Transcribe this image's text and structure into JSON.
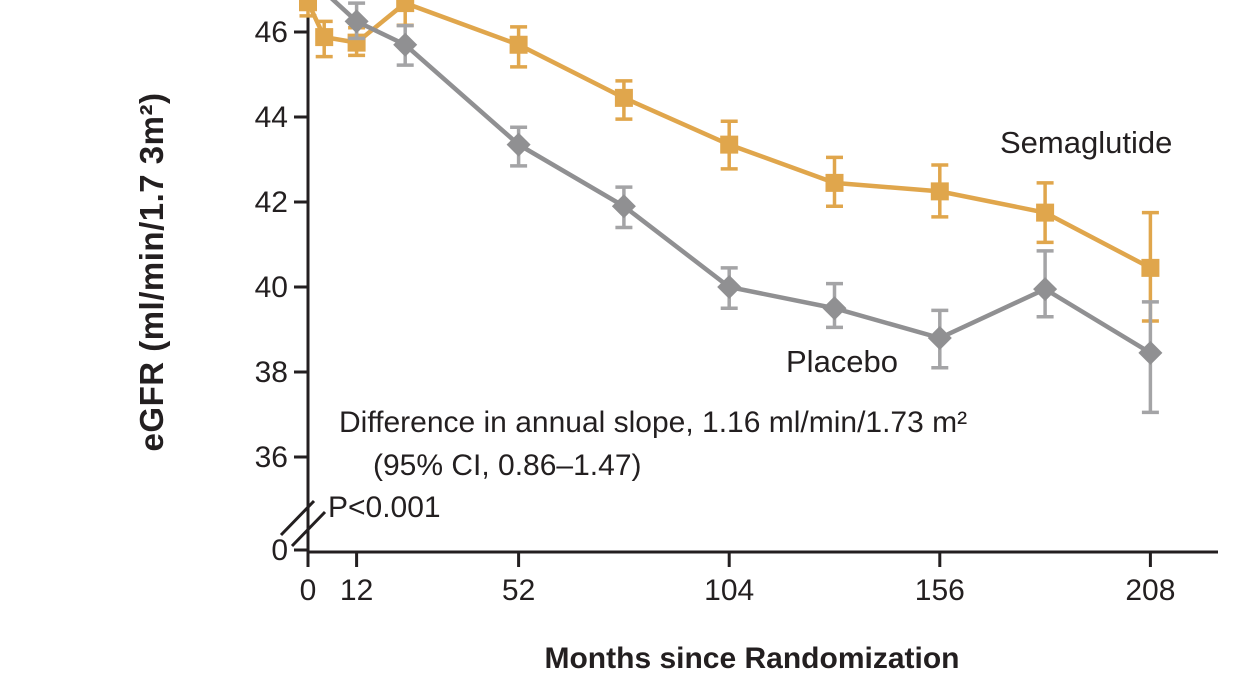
{
  "chart_data": {
    "type": "line",
    "title": "",
    "xlabel": "Months since Randomization",
    "ylabel": "eGFR (ml/min/1.7 3m²)",
    "x_ticks": [
      0,
      12,
      52,
      104,
      156,
      208
    ],
    "y_ticks": [
      0,
      36,
      38,
      40,
      42,
      44,
      46
    ],
    "y_axis_break_between": [
      0,
      36
    ],
    "ylim_shown": [
      36,
      46.75
    ],
    "xlim": [
      0,
      224
    ],
    "grid": false,
    "legend_position": "inline-labels",
    "colors": {
      "semaglutide": "#e0a64c",
      "semaglutide_whisker": "#e0a64c",
      "placebo": "#909092",
      "placebo_whisker": "#a4a4a6",
      "axis_text": "#231f20"
    },
    "annotation_lines": [
      "Difference in annual slope, 1.16 ml/min/1.73 m²",
      "(95% CI, 0.86–1.47)",
      "P<0.001"
    ],
    "series": [
      {
        "name": "Semaglutide",
        "marker": "square",
        "color_key": "semaglutide",
        "points": [
          {
            "x": 0,
            "y": 46.7,
            "lo": 46.38,
            "hi": 47.2
          },
          {
            "x": 4,
            "y": 45.88,
            "lo": 45.42,
            "hi": 46.25
          },
          {
            "x": 12,
            "y": 45.75,
            "lo": 45.45,
            "hi": 46.1
          },
          {
            "x": 24,
            "y": 46.68,
            "lo": 46.16,
            "hi": 47.2
          },
          {
            "x": 52,
            "y": 45.7,
            "lo": 45.18,
            "hi": 46.12
          },
          {
            "x": 78,
            "y": 44.45,
            "lo": 43.95,
            "hi": 44.85
          },
          {
            "x": 104,
            "y": 43.35,
            "lo": 42.78,
            "hi": 43.9
          },
          {
            "x": 130,
            "y": 42.45,
            "lo": 41.9,
            "hi": 43.05
          },
          {
            "x": 156,
            "y": 42.25,
            "lo": 41.65,
            "hi": 42.87
          },
          {
            "x": 182,
            "y": 41.75,
            "lo": 41.05,
            "hi": 42.45
          },
          {
            "x": 208,
            "y": 40.45,
            "lo": 39.2,
            "hi": 41.75
          }
        ]
      },
      {
        "name": "Placebo",
        "marker": "diamond",
        "color_key": "placebo",
        "points": [
          {
            "x": 0,
            "y": 47.3,
            "lo": null,
            "hi": null
          },
          {
            "x": 12,
            "y": 46.25,
            "lo": 45.85,
            "hi": 46.68
          },
          {
            "x": 24,
            "y": 45.7,
            "lo": 45.22,
            "hi": 46.15
          },
          {
            "x": 52,
            "y": 43.35,
            "lo": 42.85,
            "hi": 43.76
          },
          {
            "x": 78,
            "y": 41.9,
            "lo": 41.4,
            "hi": 42.35
          },
          {
            "x": 104,
            "y": 40.0,
            "lo": 39.5,
            "hi": 40.45
          },
          {
            "x": 130,
            "y": 39.5,
            "lo": 39.05,
            "hi": 40.08
          },
          {
            "x": 156,
            "y": 38.8,
            "lo": 38.1,
            "hi": 39.45
          },
          {
            "x": 182,
            "y": 39.95,
            "lo": 39.3,
            "hi": 40.85
          },
          {
            "x": 208,
            "y": 38.45,
            "lo": 37.05,
            "hi": 39.65
          }
        ]
      }
    ]
  }
}
